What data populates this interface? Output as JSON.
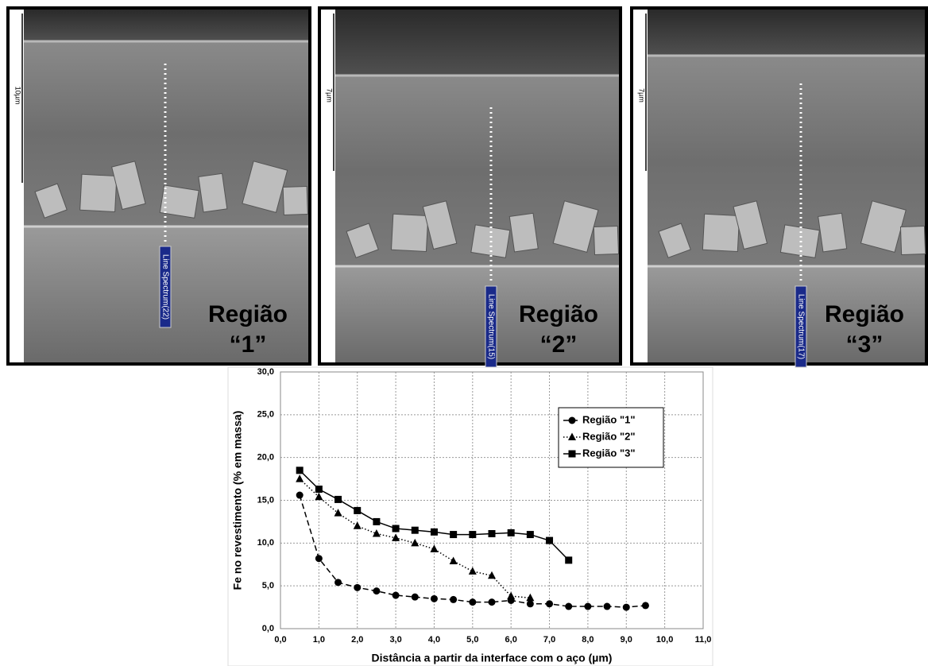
{
  "panels": [
    {
      "scale": "10µm",
      "spectrum": "Line Spectrum(22)",
      "label_line1": "Região",
      "label_line2": "“1”"
    },
    {
      "scale": "7µm",
      "spectrum": "Line Spectrum(15)",
      "label_line1": "Região",
      "label_line2": "“2”"
    },
    {
      "scale": "7µm",
      "spectrum": "Line Spectrum(17)",
      "label_line1": "Região",
      "label_line2": "“3”"
    }
  ],
  "chart_data": {
    "type": "line",
    "y_label": "Fe no revestimento (% em massa)",
    "x_label": "Distância a partir da interface com o aço (µm)",
    "xlim": [
      0,
      11
    ],
    "xticks": [
      {
        "value": 0,
        "label": "0,0"
      },
      {
        "value": 1,
        "label": "1,0"
      },
      {
        "value": 2,
        "label": "2,0"
      },
      {
        "value": 3,
        "label": "3,0"
      },
      {
        "value": 4,
        "label": "4,0"
      },
      {
        "value": 5,
        "label": "5,0"
      },
      {
        "value": 6,
        "label": "6,0"
      },
      {
        "value": 7,
        "label": "7,0"
      },
      {
        "value": 8,
        "label": "8,0"
      },
      {
        "value": 9,
        "label": "9,0"
      },
      {
        "value": 10,
        "label": "10,0"
      },
      {
        "value": 11,
        "label": "11,0"
      }
    ],
    "ylim": [
      0,
      30
    ],
    "yticks": [
      {
        "value": 0,
        "label": "0,0"
      },
      {
        "value": 5,
        "label": "5,0"
      },
      {
        "value": 10,
        "label": "10,0"
      },
      {
        "value": 15,
        "label": "15,0"
      },
      {
        "value": 20,
        "label": "20,0"
      },
      {
        "value": 25,
        "label": "25,0"
      },
      {
        "value": 30,
        "label": "30,0"
      }
    ],
    "grid": true,
    "legend": "upper right",
    "series": [
      {
        "name": "Região \"1\"",
        "color": "#000000",
        "dash": "dashed",
        "marker": "circle",
        "x": [
          0.5,
          1.0,
          1.5,
          2.0,
          2.5,
          3.0,
          3.5,
          4.0,
          4.5,
          5.0,
          5.5,
          6.0,
          6.5,
          7.0,
          7.5,
          8.0,
          8.5,
          9.0,
          9.5
        ],
        "values": [
          15.6,
          8.2,
          5.4,
          4.8,
          4.4,
          3.9,
          3.7,
          3.5,
          3.4,
          3.1,
          3.1,
          3.3,
          2.9,
          2.9,
          2.6,
          2.6,
          2.6,
          2.5,
          2.7
        ]
      },
      {
        "name": "Região \"2\"",
        "color": "#000000",
        "dash": "dotted",
        "marker": "triangle",
        "x": [
          0.5,
          1.0,
          1.5,
          2.0,
          2.5,
          3.0,
          3.5,
          4.0,
          4.5,
          5.0,
          5.5,
          6.0,
          6.5
        ],
        "values": [
          17.5,
          15.4,
          13.5,
          12.0,
          11.1,
          10.6,
          10.0,
          9.3,
          7.9,
          6.7,
          6.2,
          3.8,
          3.6
        ]
      },
      {
        "name": "Região \"3\"",
        "color": "#000000",
        "dash": "solid",
        "marker": "square",
        "x": [
          0.5,
          1.0,
          1.5,
          2.0,
          2.5,
          3.0,
          3.5,
          4.0,
          4.5,
          5.0,
          5.5,
          6.0,
          6.5,
          7.0,
          7.5
        ],
        "values": [
          18.5,
          16.3,
          15.1,
          13.8,
          12.5,
          11.7,
          11.5,
          11.3,
          11.0,
          11.0,
          11.1,
          11.2,
          11.0,
          10.3,
          8.0
        ]
      }
    ]
  }
}
